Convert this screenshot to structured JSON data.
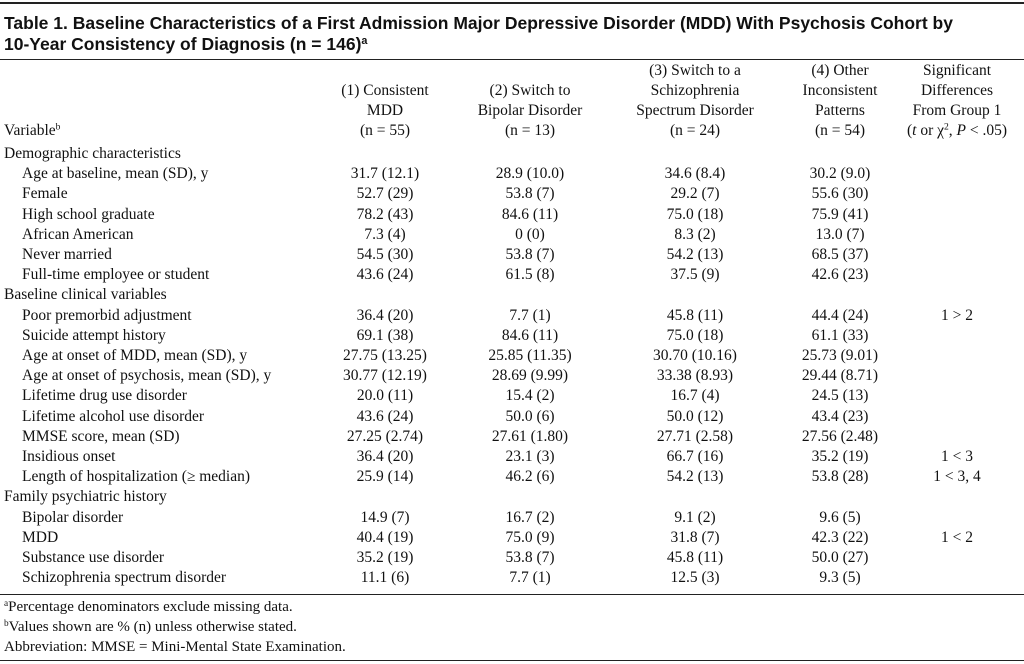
{
  "title": {
    "lines": [
      "Table 1. Baseline Characteristics of a First Admission Major Depressive Disorder (MDD) With Psychosis Cohort by",
      "10-Year Consistency of Diagnosis (n = 146)"
    ],
    "superscript": "a"
  },
  "header": {
    "variable": {
      "text": "Variable",
      "superscript": "b"
    },
    "columns": [
      {
        "lines": [
          "(1) Consistent",
          "MDD",
          "(n = 55)"
        ]
      },
      {
        "lines": [
          "(2) Switch to",
          "Bipolar Disorder",
          "(n = 13)"
        ]
      },
      {
        "lines": [
          "(3) Switch to a",
          "Schizophrenia",
          "Spectrum Disorder",
          "(n = 24)"
        ]
      },
      {
        "lines": [
          "(4) Other",
          "Inconsistent",
          "Patterns",
          "(n = 54)"
        ]
      },
      {
        "lines": [
          "Significant",
          "Differences",
          "From Group 1"
        ],
        "last_line": [
          "(",
          "t",
          " or χ",
          "2",
          ", ",
          "P",
          " < .05)"
        ]
      }
    ]
  },
  "sections": [
    {
      "label": "Demographic characteristics",
      "rows": [
        {
          "variable": "Age at baseline, mean (SD), y",
          "values": [
            "31.7 (12.1)",
            "28.9 (10.0)",
            "34.6 (8.4)",
            "30.2 (9.0)"
          ]
        },
        {
          "variable": "Female",
          "values": [
            "52.7 (29)",
            "53.8 (7)",
            "29.2 (7)",
            "55.6 (30)"
          ]
        },
        {
          "variable": "High school graduate",
          "values": [
            "78.2 (43)",
            "84.6 (11)",
            "75.0 (18)",
            "75.9 (41)"
          ]
        },
        {
          "variable": "African American",
          "values": [
            "7.3 (4)",
            "0 (0)",
            "8.3 (2)",
            "13.0 (7)"
          ]
        },
        {
          "variable": "Never married",
          "values": [
            "54.5 (30)",
            "53.8 (7)",
            "54.2 (13)",
            "68.5 (37)"
          ]
        },
        {
          "variable": "Full-time employee or student",
          "values": [
            "43.6 (24)",
            "61.5 (8)",
            "37.5 (9)",
            "42.6 (23)"
          ]
        }
      ]
    },
    {
      "label": "Baseline clinical variables",
      "rows": [
        {
          "variable": "Poor premorbid adjustment",
          "values": [
            "36.4 (20)",
            "7.7 (1)",
            "45.8 (11)",
            "44.4 (24)"
          ],
          "difference": "1 > 2"
        },
        {
          "variable": "Suicide attempt history",
          "values": [
            "69.1 (38)",
            "84.6 (11)",
            "75.0 (18)",
            "61.1 (33)"
          ]
        },
        {
          "variable": "Age at onset of MDD, mean (SD), y",
          "values": [
            "27.75 (13.25)",
            "25.85 (11.35)",
            "30.70 (10.16)",
            "25.73 (9.01)"
          ]
        },
        {
          "variable": "Age at onset of psychosis, mean (SD), y",
          "values": [
            "30.77 (12.19)",
            "28.69 (9.99)",
            "33.38 (8.93)",
            "29.44 (8.71)"
          ]
        },
        {
          "variable": "Lifetime drug use disorder",
          "values": [
            "20.0 (11)",
            "15.4 (2)",
            "16.7 (4)",
            "24.5 (13)"
          ]
        },
        {
          "variable": "Lifetime alcohol use disorder",
          "values": [
            "43.6 (24)",
            "50.0 (6)",
            "50.0 (12)",
            "43.4 (23)"
          ]
        },
        {
          "variable": "MMSE score, mean (SD)",
          "values": [
            "27.25 (2.74)",
            "27.61 (1.80)",
            "27.71 (2.58)",
            "27.56 (2.48)"
          ]
        },
        {
          "variable": "Insidious onset",
          "values": [
            "36.4 (20)",
            "23.1 (3)",
            "66.7 (16)",
            "35.2 (19)"
          ],
          "difference": "1 < 3"
        },
        {
          "variable": "Length of hospitalization (≥ median)",
          "values": [
            "25.9 (14)",
            "46.2 (6)",
            "54.2 (13)",
            "53.8 (28)"
          ],
          "difference": "1 < 3, 4"
        }
      ]
    },
    {
      "label": "Family psychiatric history",
      "rows": [
        {
          "variable": "Bipolar disorder",
          "values": [
            "14.9 (7)",
            "16.7 (2)",
            "9.1 (2)",
            "9.6 (5)"
          ]
        },
        {
          "variable": "MDD",
          "values": [
            "40.4 (19)",
            "75.0 (9)",
            "31.8 (7)",
            "42.3 (22)"
          ],
          "difference": "1 < 2"
        },
        {
          "variable": "Substance use disorder",
          "values": [
            "35.2 (19)",
            "53.8 (7)",
            "45.8 (11)",
            "50.0 (27)"
          ]
        },
        {
          "variable": "Schizophrenia spectrum disorder",
          "values": [
            "11.1 (6)",
            "7.7 (1)",
            "12.5 (3)",
            "9.3 (5)"
          ]
        }
      ]
    }
  ],
  "footnotes": [
    {
      "marker": "a",
      "text": "Percentage denominators exclude missing data."
    },
    {
      "marker": "b",
      "text": "Values shown are % (n) unless otherwise stated."
    },
    {
      "text": "Abbreviation: MMSE = Mini-Mental State Examination."
    }
  ]
}
